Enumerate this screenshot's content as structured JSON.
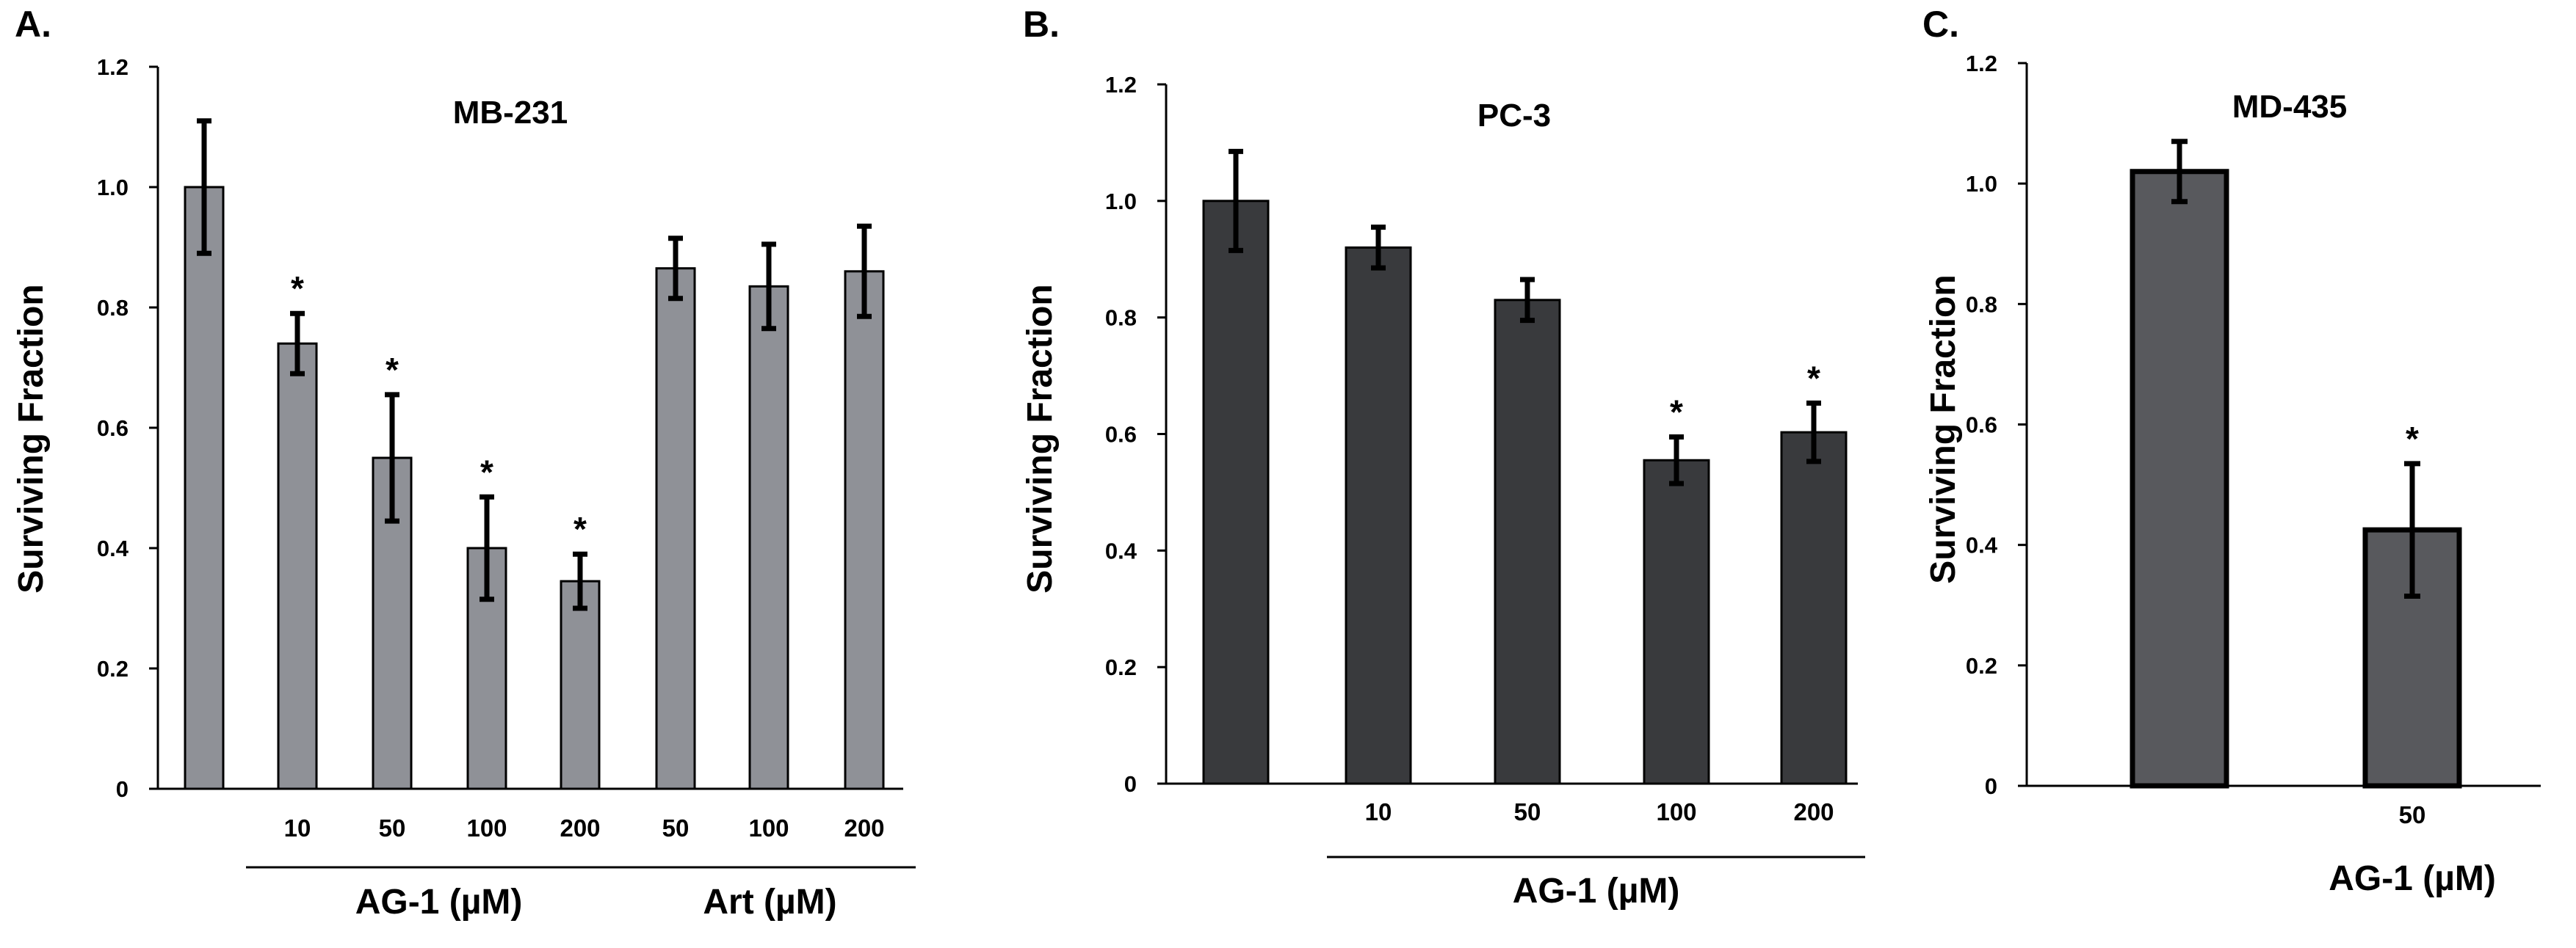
{
  "chart_data": [
    {
      "type": "bar",
      "panel_label": "A.",
      "title": "MB-231",
      "ylabel": "Surviving Fraction",
      "ylim": [
        0,
        1.2
      ],
      "yticks": [
        "0",
        "0.2",
        "0.4",
        "0.6",
        "0.8",
        "1.0",
        "1.2"
      ],
      "bar_color": "#8f9197",
      "categories": [
        "",
        "10",
        "50",
        "100",
        "200",
        "50",
        "100",
        "200"
      ],
      "values": [
        1.0,
        0.74,
        0.55,
        0.4,
        0.345,
        0.865,
        0.835,
        0.86
      ],
      "errors": [
        0.11,
        0.05,
        0.105,
        0.085,
        0.045,
        0.05,
        0.07,
        0.075
      ],
      "significant": [
        false,
        true,
        true,
        true,
        true,
        false,
        false,
        false
      ],
      "significance_marker": "*",
      "groups": [
        {
          "label": "AG-1 (µM)",
          "from": 1,
          "to": 4
        },
        {
          "label": "Art (µM)",
          "from": 5,
          "to": 7
        }
      ]
    },
    {
      "type": "bar",
      "panel_label": "B.",
      "title": "PC-3",
      "ylabel": "Surviving Fraction",
      "ylim": [
        0,
        1.2
      ],
      "yticks": [
        "0",
        "0.2",
        "0.4",
        "0.6",
        "0.8",
        "1.0",
        "1.2"
      ],
      "bar_color": "#393a3d",
      "categories": [
        "",
        "10",
        "50",
        "100",
        "200"
      ],
      "values": [
        1.0,
        0.92,
        0.83,
        0.555,
        0.603
      ],
      "errors": [
        0.085,
        0.035,
        0.035,
        0.04,
        0.05
      ],
      "significant": [
        false,
        false,
        false,
        true,
        true
      ],
      "significance_marker": "*",
      "groups": [
        {
          "label": "AG-1 (µM)",
          "from": 1,
          "to": 4
        }
      ]
    },
    {
      "type": "bar",
      "panel_label": "C.",
      "title": "MD-435",
      "ylabel": "Surviving Fraction",
      "ylim": [
        0,
        1.2
      ],
      "yticks": [
        "0",
        "0.2",
        "0.4",
        "0.6",
        "0.8",
        "1.0",
        "1.2"
      ],
      "bar_color": "#58595d",
      "categories": [
        "",
        "50"
      ],
      "values": [
        1.02,
        0.425
      ],
      "errors": [
        0.05,
        0.11
      ],
      "significant": [
        false,
        true
      ],
      "significance_marker": "*",
      "groups": [
        {
          "label": "AG-1 (µM)",
          "from": 1,
          "to": 1,
          "no_line": true
        }
      ]
    }
  ]
}
